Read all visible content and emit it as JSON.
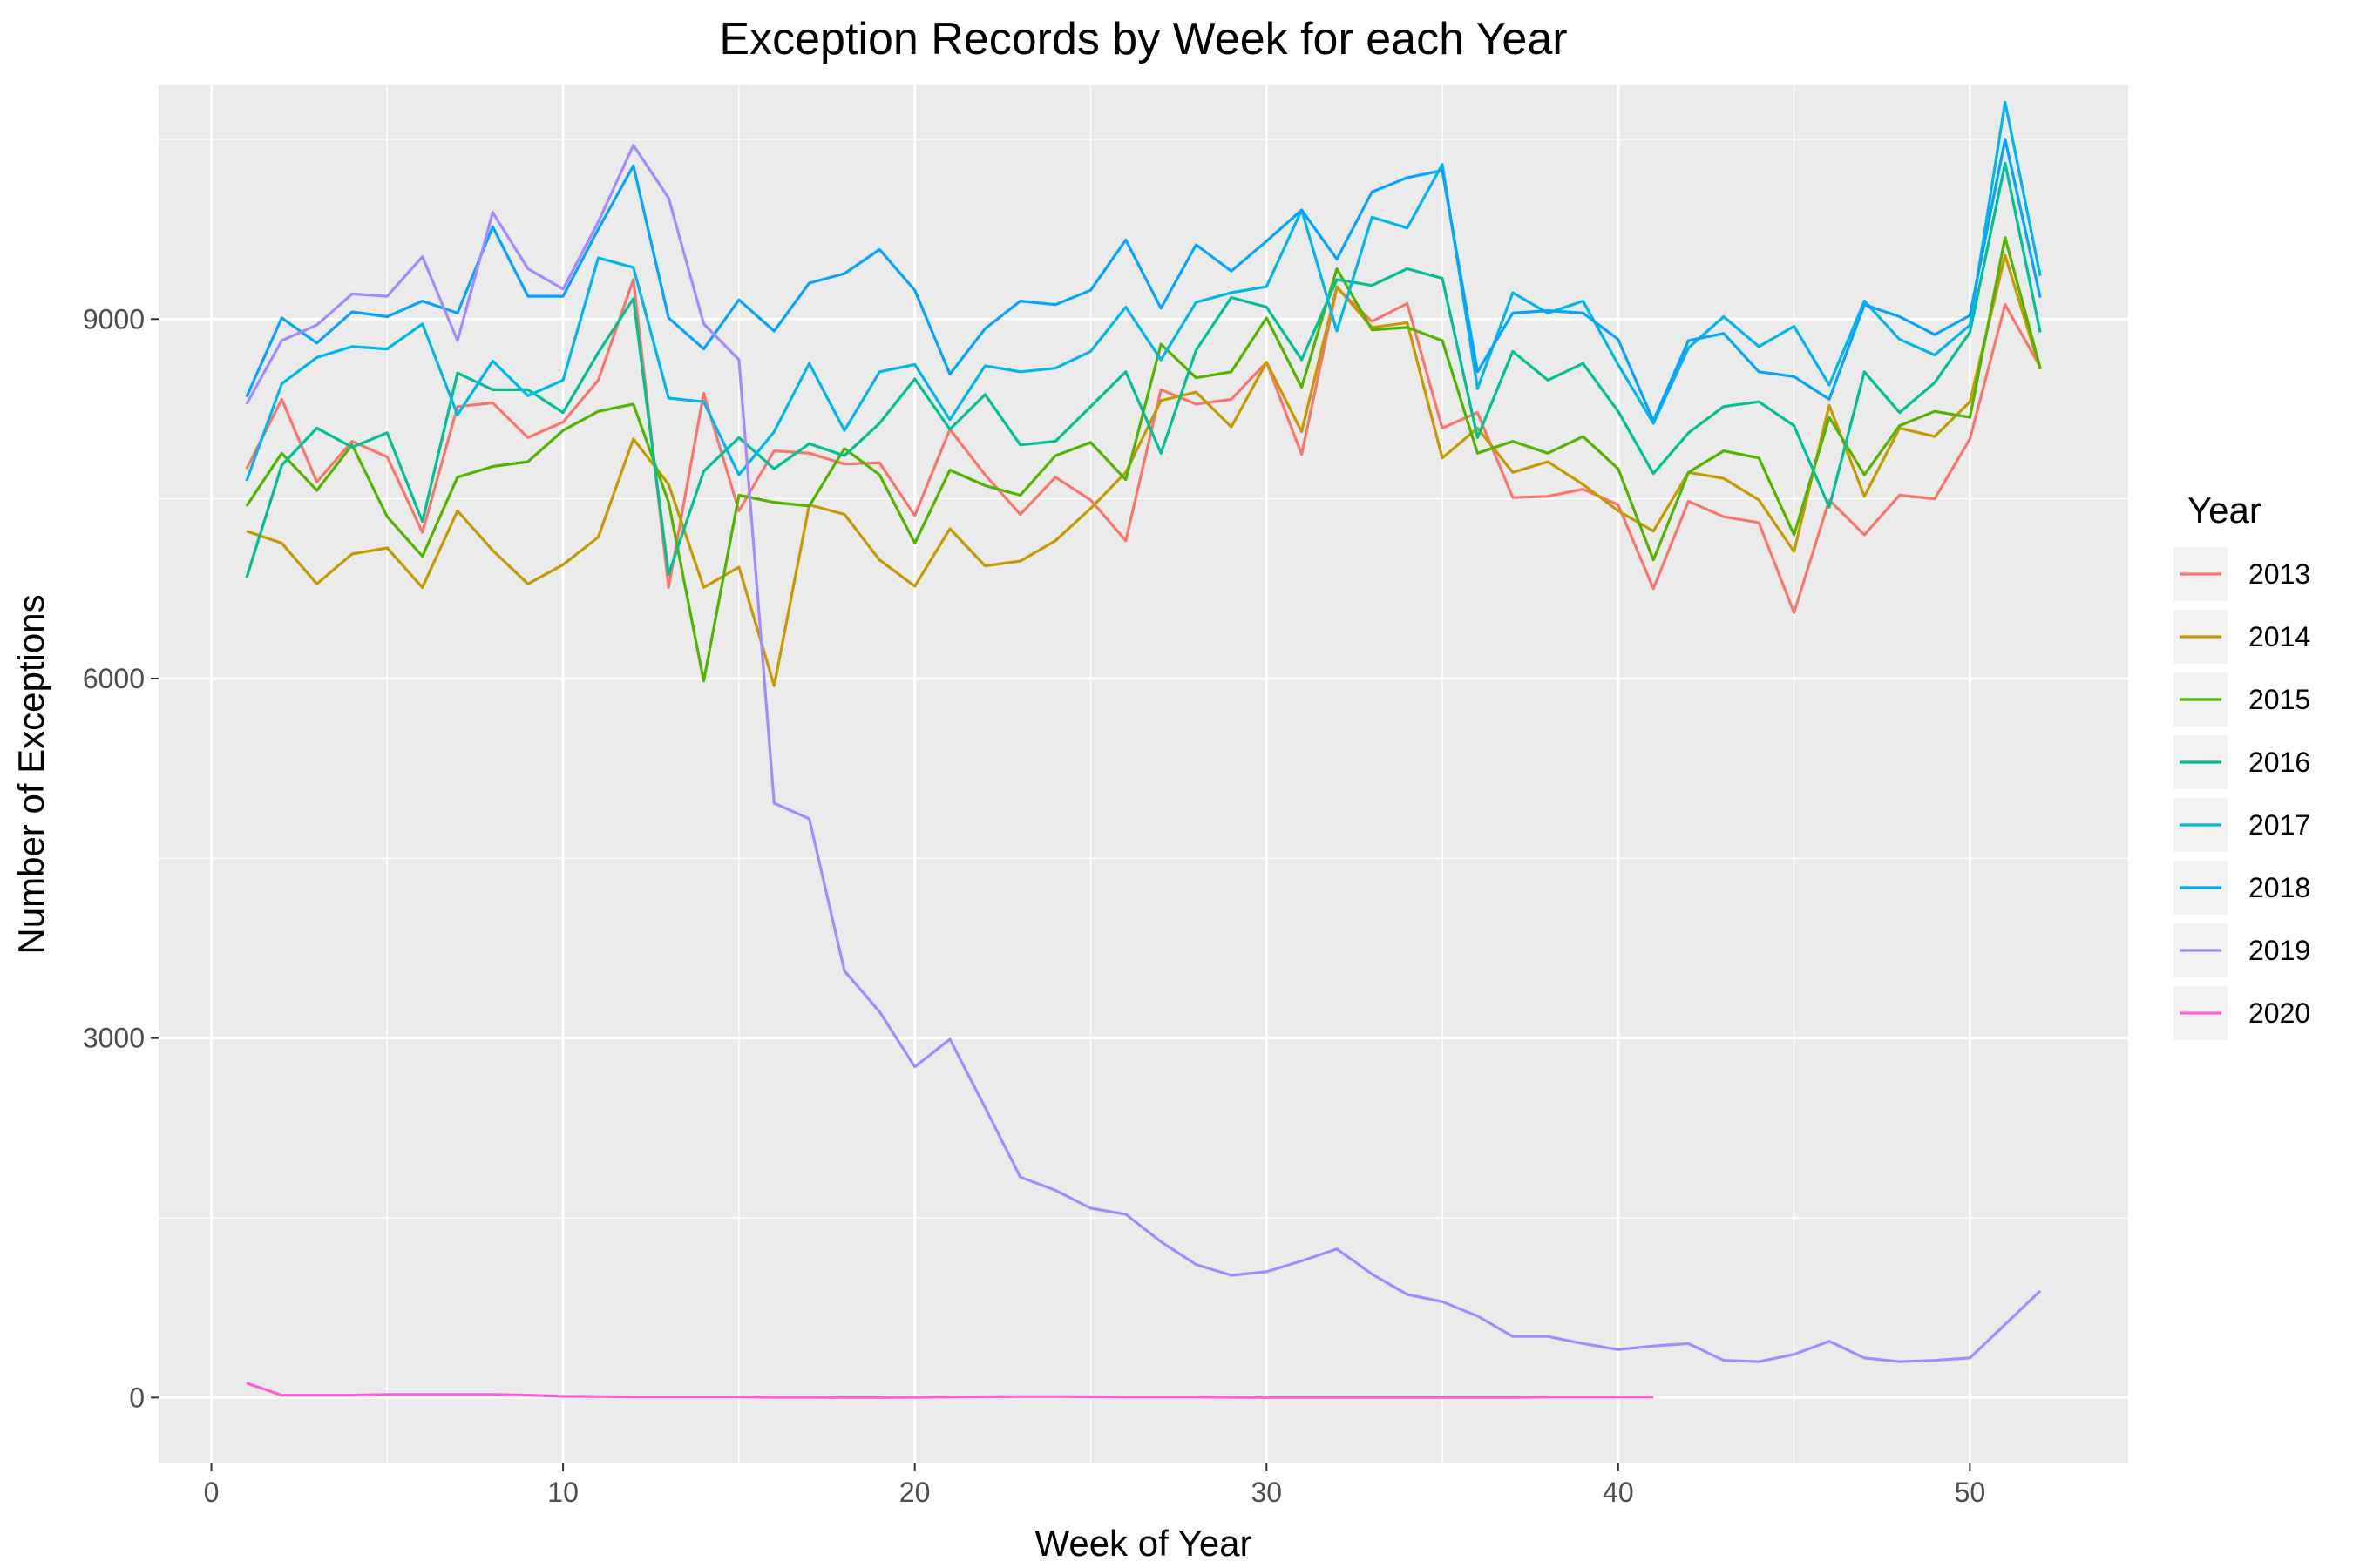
{
  "chart_data": {
    "type": "line",
    "title": "Exception Records by Week for each Year",
    "xlabel": "Week of Year",
    "ylabel": "Number of Exceptions",
    "xlim": [
      -1.5,
      54.5
    ],
    "ylim": [
      -550,
      10950
    ],
    "x_ticks": [
      0,
      10,
      20,
      30,
      40,
      50
    ],
    "x_tick_labels": [
      "0",
      "10",
      "20",
      "30",
      "40",
      "50"
    ],
    "y_ticks": [
      0,
      3000,
      6000,
      9000
    ],
    "y_tick_labels": [
      "0",
      "3000",
      "6000",
      "9000"
    ],
    "grid": true,
    "legend": {
      "title": "Year",
      "position": "right"
    },
    "series": [
      {
        "name": "2013",
        "color": "#F8766D",
        "x": [
          1,
          2,
          3,
          4,
          5,
          6,
          7,
          8,
          9,
          10,
          11,
          12,
          13,
          14,
          15,
          16,
          17,
          18,
          19,
          20,
          21,
          22,
          23,
          24,
          25,
          26,
          27,
          28,
          29,
          30,
          31,
          32,
          33,
          34,
          35,
          36,
          37,
          38,
          39,
          40,
          41,
          42,
          43,
          44,
          45,
          46,
          47,
          48,
          49,
          50,
          51,
          52
        ],
        "values": [
          7750,
          8330,
          7640,
          7980,
          7850,
          7220,
          8270,
          8300,
          8010,
          8140,
          8490,
          9330,
          6760,
          8380,
          7400,
          7900,
          7880,
          7790,
          7800,
          7360,
          8080,
          7700,
          7370,
          7680,
          7490,
          7150,
          8410,
          8290,
          8330,
          8640,
          7870,
          9260,
          8980,
          9130,
          8090,
          8220,
          7510,
          7520,
          7580,
          7450,
          6750,
          7480,
          7350,
          7300,
          6550,
          7490,
          7200,
          7530,
          7500,
          8000,
          9120,
          8600
        ]
      },
      {
        "name": "2014",
        "color": "#C49A00",
        "x": [
          1,
          2,
          3,
          4,
          5,
          6,
          7,
          8,
          9,
          10,
          11,
          12,
          13,
          14,
          15,
          16,
          17,
          18,
          19,
          20,
          21,
          22,
          23,
          24,
          25,
          26,
          27,
          28,
          29,
          30,
          31,
          32,
          33,
          34,
          35,
          36,
          37,
          38,
          39,
          40,
          41,
          42,
          43,
          44,
          45,
          46,
          47,
          48,
          49,
          50,
          51,
          52
        ],
        "values": [
          7230,
          7130,
          6790,
          7040,
          7090,
          6760,
          7400,
          7070,
          6790,
          6950,
          7180,
          8000,
          7620,
          6760,
          6930,
          5940,
          7450,
          7370,
          6990,
          6770,
          7250,
          6940,
          6980,
          7150,
          7420,
          7720,
          8320,
          8390,
          8100,
          8640,
          8060,
          9270,
          8930,
          8970,
          7840,
          8090,
          7720,
          7810,
          7620,
          7400,
          7230,
          7720,
          7670,
          7490,
          7060,
          8280,
          7520,
          8090,
          8020,
          8310,
          9530,
          8580
        ]
      },
      {
        "name": "2015",
        "color": "#53B400",
        "x": [
          1,
          2,
          3,
          4,
          5,
          6,
          7,
          8,
          9,
          10,
          11,
          12,
          13,
          14,
          15,
          16,
          17,
          18,
          19,
          20,
          21,
          22,
          23,
          24,
          25,
          26,
          27,
          28,
          29,
          30,
          31,
          32,
          33,
          34,
          35,
          36,
          37,
          38,
          39,
          40,
          41,
          42,
          43,
          44,
          45,
          46,
          47,
          48,
          49,
          50,
          51,
          52
        ],
        "values": [
          7440,
          7880,
          7570,
          7950,
          7350,
          7020,
          7680,
          7770,
          7810,
          8070,
          8230,
          8290,
          7470,
          5980,
          7530,
          7470,
          7440,
          7920,
          7700,
          7130,
          7740,
          7610,
          7530,
          7860,
          7970,
          7660,
          8790,
          8510,
          8560,
          9010,
          8430,
          9420,
          8910,
          8930,
          8820,
          7880,
          7980,
          7880,
          8020,
          7750,
          6990,
          7720,
          7900,
          7840,
          7200,
          8180,
          7700,
          8110,
          8230,
          8180,
          9680,
          8590
        ]
      },
      {
        "name": "2016",
        "color": "#00C094",
        "x": [
          1,
          2,
          3,
          4,
          5,
          6,
          7,
          8,
          9,
          10,
          11,
          12,
          13,
          14,
          15,
          16,
          17,
          18,
          19,
          20,
          21,
          22,
          23,
          24,
          25,
          26,
          27,
          28,
          29,
          30,
          31,
          32,
          33,
          34,
          35,
          36,
          37,
          38,
          39,
          40,
          41,
          42,
          43,
          44,
          45,
          46,
          47,
          48,
          49,
          50,
          51,
          52
        ],
        "values": [
          6840,
          7780,
          8090,
          7930,
          8050,
          7310,
          8550,
          8410,
          8410,
          8220,
          8720,
          9170,
          6870,
          7730,
          8010,
          7750,
          7960,
          7860,
          8130,
          8500,
          8080,
          8370,
          7950,
          7980,
          8270,
          8560,
          7880,
          8740,
          9180,
          9100,
          8660,
          9330,
          9280,
          9420,
          9340,
          8010,
          8730,
          8490,
          8630,
          8230,
          7710,
          8050,
          8270,
          8310,
          8110,
          7430,
          8560,
          8220,
          8470,
          8890,
          10300,
          8890
        ]
      },
      {
        "name": "2017",
        "color": "#00B6EB",
        "x": [
          1,
          2,
          3,
          4,
          5,
          6,
          7,
          8,
          9,
          10,
          11,
          12,
          13,
          14,
          15,
          16,
          17,
          18,
          19,
          20,
          21,
          22,
          23,
          24,
          25,
          26,
          27,
          28,
          29,
          30,
          31,
          32,
          33,
          34,
          35,
          36,
          37,
          38,
          39,
          40,
          41,
          42,
          43,
          44,
          45,
          46,
          47,
          48,
          49,
          50,
          51,
          52
        ],
        "values": [
          7650,
          8460,
          8680,
          8770,
          8750,
          8960,
          8200,
          8650,
          8360,
          8490,
          9510,
          9430,
          8340,
          8310,
          7700,
          8060,
          8630,
          8070,
          8560,
          8620,
          8160,
          8610,
          8560,
          8590,
          8730,
          9100,
          8660,
          9140,
          9220,
          9270,
          9910,
          8900,
          9850,
          9760,
          10290,
          8420,
          9220,
          9050,
          9150,
          8620,
          8130,
          8760,
          9020,
          8770,
          8940,
          8450,
          9150,
          8830,
          8700,
          8950,
          10810,
          9360
        ]
      },
      {
        "name": "2018",
        "color": "#06A4FF",
        "x": [
          1,
          2,
          3,
          4,
          5,
          6,
          7,
          8,
          9,
          10,
          11,
          12,
          13,
          14,
          15,
          16,
          17,
          18,
          19,
          20,
          21,
          22,
          23,
          24,
          25,
          26,
          27,
          28,
          29,
          30,
          31,
          32,
          33,
          34,
          35,
          36,
          37,
          38,
          39,
          40,
          41,
          42,
          43,
          44,
          45,
          46,
          47,
          48,
          49,
          50,
          51,
          52
        ],
        "values": [
          8350,
          9010,
          8800,
          9060,
          9020,
          9150,
          9050,
          9770,
          9190,
          9190,
          9750,
          10280,
          9010,
          8750,
          9160,
          8900,
          9300,
          9380,
          9580,
          9240,
          8540,
          8920,
          9150,
          9120,
          9240,
          9660,
          9090,
          9620,
          9400,
          9650,
          9910,
          9500,
          10060,
          10180,
          10240,
          8560,
          9050,
          9070,
          9050,
          8830,
          8150,
          8820,
          8880,
          8560,
          8520,
          8330,
          9120,
          9020,
          8870,
          9030,
          10500,
          9180
        ]
      },
      {
        "name": "2019",
        "color": "#A58AFF",
        "x": [
          1,
          2,
          3,
          4,
          5,
          6,
          7,
          8,
          9,
          10,
          11,
          12,
          13,
          14,
          15,
          16,
          17,
          18,
          19,
          20,
          21,
          22,
          23,
          24,
          25,
          26,
          27,
          28,
          29,
          30,
          31,
          32,
          33,
          34,
          35,
          36,
          37,
          38,
          39,
          40,
          41,
          42,
          43,
          44,
          45,
          46,
          47,
          48,
          49,
          50,
          51,
          52
        ],
        "values": [
          8290,
          8820,
          8950,
          9210,
          9190,
          9520,
          8820,
          9890,
          9420,
          9250,
          9810,
          10450,
          10010,
          8960,
          8660,
          4960,
          4830,
          3560,
          3220,
          2760,
          2990,
          2420,
          1840,
          1730,
          1580,
          1530,
          1300,
          1110,
          1020,
          1050,
          1140,
          1240,
          1030,
          860,
          800,
          680,
          510,
          510,
          450,
          400,
          430,
          450,
          310,
          300,
          360,
          470,
          330,
          300,
          310,
          330,
          610,
          890
        ]
      },
      {
        "name": "2020",
        "color": "#FB61D7",
        "x": [
          1,
          2,
          3,
          4,
          5,
          6,
          7,
          8,
          9,
          10,
          11,
          12,
          13,
          14,
          15,
          16,
          17,
          18,
          19,
          20,
          21,
          22,
          23,
          24,
          25,
          26,
          27,
          28,
          29,
          30,
          31,
          32,
          33,
          34,
          35,
          36,
          37,
          38,
          39,
          40,
          41
        ],
        "values": [
          120,
          20,
          20,
          20,
          25,
          25,
          25,
          25,
          20,
          10,
          8,
          5,
          5,
          5,
          5,
          2,
          2,
          0,
          0,
          2,
          4,
          6,
          8,
          8,
          6,
          4,
          4,
          4,
          2,
          0,
          0,
          0,
          0,
          0,
          0,
          0,
          0,
          4,
          4,
          4,
          4
        ]
      }
    ]
  }
}
